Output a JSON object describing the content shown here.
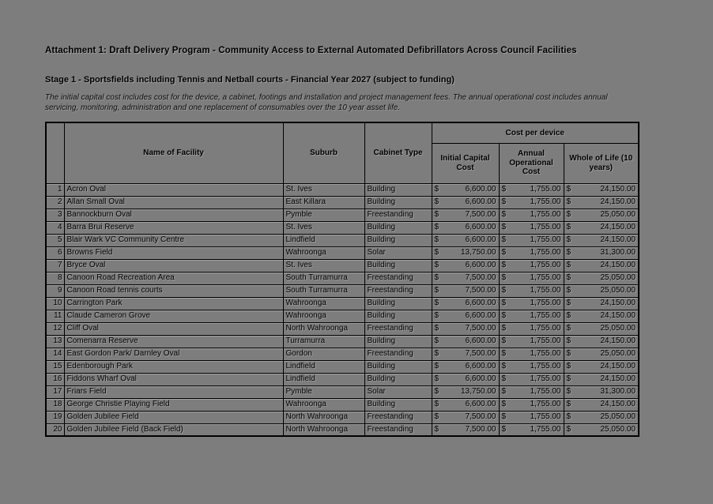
{
  "header": {
    "title": "Attachment 1: Draft Delivery Program - Community Access to External Automated Defibrillators Across Council Facilities",
    "subtitle": "Stage 1 - Sportsfields including Tennis and Netball courts - Financial Year 2027 (subject to funding)",
    "note": "The initial capital cost includes cost for the device, a cabinet, footings and installation and project management fees. The annual operational cost includes annual servicing, monitoring, administration and one replacement of consumables over the 10 year asset life."
  },
  "table": {
    "columns": {
      "rownum": "",
      "facility": "Name of Facility",
      "suburb": "Suburb",
      "cabinet": "Cabinet Type",
      "group": "Cost per device",
      "initial": "Initial Capital Cost",
      "annual": "Annual Operational Cost",
      "wol": "Whole of Life (10 years)"
    },
    "currency_symbol": "$",
    "rows": [
      {
        "num": "1",
        "facility": "Acron Oval",
        "suburb": "St. Ives",
        "cabinet": "Building",
        "initial": "6,600.00",
        "annual": "1,755.00",
        "wol": "24,150.00"
      },
      {
        "num": "2",
        "facility": "Allan Small Oval",
        "suburb": "East Killara",
        "cabinet": "Building",
        "initial": "6,600.00",
        "annual": "1,755.00",
        "wol": "24,150.00"
      },
      {
        "num": "3",
        "facility": "Bannockburn Oval",
        "suburb": "Pymble",
        "cabinet": "Freestanding",
        "initial": "7,500.00",
        "annual": "1,755.00",
        "wol": "25,050.00"
      },
      {
        "num": "4",
        "facility": "Barra Brui Reserve",
        "suburb": "St. Ives",
        "cabinet": "Building",
        "initial": "6,600.00",
        "annual": "1,755.00",
        "wol": "24,150.00"
      },
      {
        "num": "5",
        "facility": "Blair Wark VC Community Centre",
        "suburb": "Lindfield",
        "cabinet": "Building",
        "initial": "6,600.00",
        "annual": "1,755.00",
        "wol": "24,150.00"
      },
      {
        "num": "6",
        "facility": "Browns Field",
        "suburb": "Wahroonga",
        "cabinet": "Solar",
        "initial": "13,750.00",
        "annual": "1,755.00",
        "wol": "31,300.00"
      },
      {
        "num": "7",
        "facility": "Bryce Oval",
        "suburb": "St. Ives",
        "cabinet": "Building",
        "initial": "6,600.00",
        "annual": "1,755.00",
        "wol": "24,150.00"
      },
      {
        "num": "8",
        "facility": "Canoon Road Recreation Area",
        "suburb": "South Turramurra",
        "cabinet": "Freestanding",
        "initial": "7,500.00",
        "annual": "1,755.00",
        "wol": "25,050.00"
      },
      {
        "num": "9",
        "facility": "Canoon Road tennis courts",
        "suburb": "South Turramurra",
        "cabinet": "Freestanding",
        "initial": "7,500.00",
        "annual": "1,755.00",
        "wol": "25,050.00"
      },
      {
        "num": "10",
        "facility": "Carrington Park",
        "suburb": "Wahroonga",
        "cabinet": "Building",
        "initial": "6,600.00",
        "annual": "1,755.00",
        "wol": "24,150.00"
      },
      {
        "num": "11",
        "facility": "Claude Cameron Grove",
        "suburb": "Wahroonga",
        "cabinet": "Building",
        "initial": "6,600.00",
        "annual": "1,755.00",
        "wol": "24,150.00"
      },
      {
        "num": "12",
        "facility": "Cliff Oval",
        "suburb": "North Wahroonga",
        "cabinet": "Freestanding",
        "initial": "7,500.00",
        "annual": "1,755.00",
        "wol": "25,050.00"
      },
      {
        "num": "13",
        "facility": "Comenarra Reserve",
        "suburb": "Turramurra",
        "cabinet": "Building",
        "initial": "6,600.00",
        "annual": "1,755.00",
        "wol": "24,150.00"
      },
      {
        "num": "14",
        "facility": "East Gordon Park/ Darnley Oval",
        "suburb": "Gordon",
        "cabinet": "Freestanding",
        "initial": "7,500.00",
        "annual": "1,755.00",
        "wol": "25,050.00"
      },
      {
        "num": "15",
        "facility": "Edenborough Park",
        "suburb": "Lindfield",
        "cabinet": "Building",
        "initial": "6,600.00",
        "annual": "1,755.00",
        "wol": "24,150.00"
      },
      {
        "num": "16",
        "facility": "Fiddons Wharf Oval",
        "suburb": "Lindfield",
        "cabinet": "Building",
        "initial": "6,600.00",
        "annual": "1,755.00",
        "wol": "24,150.00"
      },
      {
        "num": "17",
        "facility": "Friars Field",
        "suburb": "Pymble",
        "cabinet": "Solar",
        "initial": "13,750.00",
        "annual": "1,755.00",
        "wol": "31,300.00"
      },
      {
        "num": "18",
        "facility": "George Christie Playing Field",
        "suburb": "Wahroonga",
        "cabinet": "Building",
        "initial": "6,600.00",
        "annual": "1,755.00",
        "wol": "24,150.00"
      },
      {
        "num": "19",
        "facility": "Golden Jubilee Field",
        "suburb": "North Wahroonga",
        "cabinet": "Freestanding",
        "initial": "7,500.00",
        "annual": "1,755.00",
        "wol": "25,050.00"
      },
      {
        "num": "20",
        "facility": "Golden Jubilee Field (Back Field)",
        "suburb": "North Wahroonga",
        "cabinet": "Freestanding",
        "initial": "7,500.00",
        "annual": "1,755.00",
        "wol": "25,050.00"
      }
    ]
  },
  "colors": {
    "page_background": "#7d7d7d",
    "text": "#000000",
    "table_border": "#000000"
  }
}
